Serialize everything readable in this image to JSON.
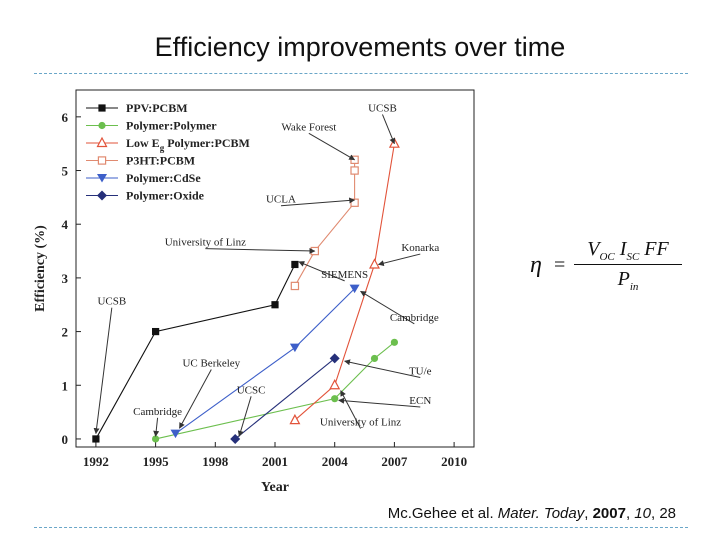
{
  "slide": {
    "title": "Efficiency improvements over time",
    "citation": {
      "authors": "Mc.Gehee et al. ",
      "journal": "Mater. Today",
      "sep1": ", ",
      "year": "2007",
      "sep2": ", ",
      "volume": "10",
      "sep3": ", ",
      "page": "28"
    },
    "equation": {
      "lhs": "η",
      "eq": "=",
      "num_v": "V",
      "num_v_sub": "OC",
      "num_i": "I",
      "num_i_sub": "SC",
      "num_ff": "FF",
      "den_p": "P",
      "den_p_sub": "in"
    }
  },
  "chart_data": {
    "type": "line",
    "xlabel": "Year",
    "ylabel": "Efficiency (%)",
    "xlim": [
      1991,
      2011
    ],
    "ylim": [
      -0.15,
      6.5
    ],
    "x_ticks": [
      1992,
      1995,
      1998,
      2001,
      2004,
      2007,
      2010
    ],
    "y_ticks": [
      0,
      1,
      2,
      3,
      4,
      5,
      6
    ],
    "legend_position": "top-left",
    "colors": {
      "ppv": "#111111",
      "polymer_polymer": "#6cbf4e",
      "low_eg": "#e2533a",
      "p3ht": "#e08a70",
      "cdse": "#3d5fc9",
      "oxide": "#26307a",
      "annotation": "#333333"
    },
    "series": [
      {
        "key": "ppv",
        "name": "PPV:PCBM",
        "marker": "square",
        "x": [
          1992,
          1995,
          2001,
          2002
        ],
        "y": [
          0,
          2,
          2.5,
          3.25
        ]
      },
      {
        "key": "polymer_polymer",
        "name": "Polymer:Polymer",
        "marker": "circle",
        "x": [
          1995,
          2004,
          2006,
          2007
        ],
        "y": [
          0,
          0.75,
          1.5,
          1.8
        ]
      },
      {
        "key": "low_eg",
        "name": "Low E",
        "name_sub": "g",
        "name_rest": " Polymer:PCBM",
        "marker": "triangle-up",
        "x": [
          2002,
          2004,
          2006,
          2007
        ],
        "y": [
          0.35,
          1.0,
          3.25,
          5.5
        ]
      },
      {
        "key": "p3ht",
        "name": "P3HT:PCBM",
        "marker": "square-open",
        "x": [
          2002,
          2003,
          2005,
          2005,
          2005
        ],
        "y": [
          2.85,
          3.5,
          4.4,
          5.0,
          5.2
        ]
      },
      {
        "key": "cdse",
        "name": "Polymer:CdSe",
        "marker": "triangle-down",
        "x": [
          1996,
          2002,
          2005
        ],
        "y": [
          0.1,
          1.7,
          2.8
        ]
      },
      {
        "key": "oxide",
        "name": "Polymer:Oxide",
        "marker": "diamond",
        "x": [
          1999,
          2004
        ],
        "y": [
          0,
          1.5
        ]
      }
    ],
    "annotations": [
      {
        "text": "UCSB",
        "x": 2006.4,
        "y": 6.1,
        "to_x": 2007,
        "to_y": 5.5
      },
      {
        "text": "Wake Forest",
        "x": 2002.7,
        "y": 5.75,
        "to_x": 2005,
        "to_y": 5.2
      },
      {
        "text": "UCLA",
        "x": 2001.3,
        "y": 4.4,
        "to_x": 2005,
        "to_y": 4.45
      },
      {
        "text": "University of Linz",
        "x": 1997.5,
        "y": 3.6,
        "to_x": 2003,
        "to_y": 3.5
      },
      {
        "text": "SIEMENS",
        "x": 2004.5,
        "y": 3.0,
        "to_x": 2002.2,
        "to_y": 3.3
      },
      {
        "text": "Konarka",
        "x": 2008.3,
        "y": 3.5,
        "to_x": 2006.2,
        "to_y": 3.25
      },
      {
        "text": "UCSB",
        "x": 1992.8,
        "y": 2.5,
        "to_x": 1992,
        "to_y": 0.1
      },
      {
        "text": "Cambridge",
        "x": 2008.0,
        "y": 2.2,
        "to_x": 2005.3,
        "to_y": 2.75
      },
      {
        "text": "UC Berkeley",
        "x": 1997.8,
        "y": 1.35,
        "to_x": 1996.2,
        "to_y": 0.2
      },
      {
        "text": "TU/e",
        "x": 2008.3,
        "y": 1.2,
        "to_x": 2004.5,
        "to_y": 1.45
      },
      {
        "text": "UCSC",
        "x": 1999.8,
        "y": 0.85,
        "to_x": 1999.2,
        "to_y": 0.05
      },
      {
        "text": "ECN",
        "x": 2008.3,
        "y": 0.65,
        "to_x": 2004.2,
        "to_y": 0.72
      },
      {
        "text": "Cambridge",
        "x": 1995.1,
        "y": 0.45,
        "to_x": 1995,
        "to_y": 0.05
      },
      {
        "text": "University of Linz",
        "x": 2005.3,
        "y": 0.25,
        "to_x": 2004.3,
        "to_y": 0.9
      }
    ]
  }
}
